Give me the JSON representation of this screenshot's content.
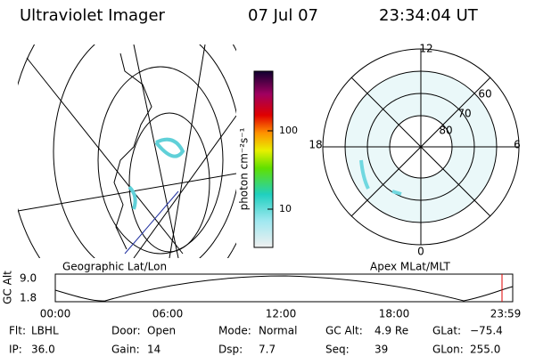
{
  "header": {
    "title": "Ultraviolet Imager",
    "date": "07 Jul 07",
    "time": "23:34:04 UT"
  },
  "colorbar": {
    "label": "photon cm⁻²s⁻¹",
    "ticks": [
      "100",
      "10"
    ]
  },
  "geo_panel": {
    "label": "Geographic Lat/Lon"
  },
  "polar_panel": {
    "label": "Apex MLat/MLT",
    "mlt_labels": [
      "12",
      "18",
      "6",
      "0"
    ],
    "lat_labels": [
      "60",
      "70",
      "80"
    ]
  },
  "timeline": {
    "ylabel": "GC Alt",
    "yticks": [
      "9.0",
      "1.8"
    ],
    "xticks": [
      "00:00",
      "06:00",
      "12:00",
      "18:00",
      "23:59"
    ]
  },
  "info": {
    "rows": [
      [
        [
          "Flt:",
          "LBHL"
        ],
        [
          "Door:",
          "Open"
        ],
        [
          "Mode:",
          "Normal"
        ],
        [
          "GC Alt:",
          "4.9 Re"
        ],
        [
          "GLat:",
          "−75.4"
        ]
      ],
      [
        [
          "IP:",
          "36.0"
        ],
        [
          "Gain:",
          "14"
        ],
        [
          "Dsp:",
          "7.7"
        ],
        [
          "Seq:",
          "39"
        ],
        [
          "GLon:",
          "255.0"
        ]
      ]
    ]
  }
}
